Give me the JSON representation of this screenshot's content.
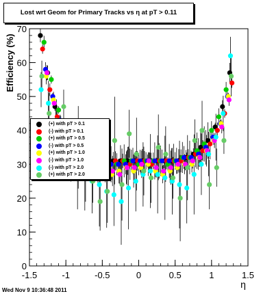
{
  "title": "Lost wrt Geom for Primary Tracks vs   η at pT > 0.11",
  "footer_timestamp": "Wed Nov  9 10:36:48 2011",
  "chart_data": {
    "type": "scatter",
    "title": "Lost wrt Geom for Primary Tracks vs   η at pT > 0.11",
    "xlabel": "η",
    "ylabel": "Efficiency (%)",
    "xlim": [
      -1.5,
      1.5
    ],
    "ylim": [
      0,
      70
    ],
    "xticks": [
      "-1.5",
      "-1",
      "-0.5",
      "0",
      "0.5",
      "1",
      "1.5"
    ],
    "yticks": [
      "0",
      "10",
      "20",
      "30",
      "40",
      "50",
      "60",
      "70"
    ],
    "legend_position": "middle-left",
    "series": [
      {
        "name": "(+) with pT > 0.1",
        "color": "#000000",
        "x": [
          -1.35,
          -1.25,
          -1.15,
          -1.05,
          -0.95,
          -0.85,
          -0.75,
          -0.65,
          -0.55,
          -0.45,
          -0.35,
          -0.25,
          -0.15,
          -0.05,
          0.05,
          0.15,
          0.25,
          0.35,
          0.45,
          0.55,
          0.65,
          0.75,
          0.85,
          0.95,
          1.05,
          1.15,
          1.25
        ],
        "y": [
          68,
          57,
          47,
          41,
          37,
          35,
          33,
          32,
          31,
          31,
          31,
          31,
          31,
          31,
          31,
          31,
          31,
          31,
          31,
          31,
          32,
          33,
          35,
          37,
          41,
          47,
          57
        ]
      },
      {
        "name": "(-) with pT > 0.1",
        "color": "#ff0000",
        "x": [
          -1.32,
          -1.22,
          -1.12,
          -1.02,
          -0.92,
          -0.82,
          -0.72,
          -0.62,
          -0.52,
          -0.42,
          -0.32,
          -0.22,
          -0.12,
          -0.02,
          0.08,
          0.18,
          0.28,
          0.38,
          0.48,
          0.58,
          0.68,
          0.78,
          0.88,
          0.98,
          1.08,
          1.18,
          1.28
        ],
        "y": [
          64,
          52,
          44,
          40,
          36,
          34,
          32,
          31,
          31,
          30,
          31,
          31,
          30,
          31,
          31,
          30,
          31,
          31,
          31,
          31,
          32,
          33,
          34,
          36,
          40,
          45,
          54
        ]
      },
      {
        "name": "(+) with pT > 0.5",
        "color": "#00cc00",
        "x": [
          -1.3,
          -1.2,
          -1.1,
          -1.0,
          -0.9,
          -0.8,
          -0.7,
          -0.6,
          -0.5,
          -0.4,
          -0.3,
          -0.2,
          -0.1,
          0.0,
          0.1,
          0.2,
          0.3,
          0.4,
          0.5,
          0.6,
          0.7,
          0.8,
          0.9,
          1.0,
          1.1,
          1.2
        ],
        "y": [
          66,
          55,
          46,
          40,
          36,
          34,
          32,
          31,
          31,
          30,
          30,
          31,
          31,
          30,
          31,
          31,
          31,
          30,
          31,
          32,
          32,
          34,
          36,
          40,
          44,
          52
        ]
      },
      {
        "name": "(-) with pT > 0.5",
        "color": "#0000ff",
        "x": [
          -1.28,
          -1.18,
          -1.08,
          -0.98,
          -0.88,
          -0.78,
          -0.68,
          -0.58,
          -0.48,
          -0.38,
          -0.28,
          -0.18,
          -0.08,
          0.02,
          0.12,
          0.22,
          0.32,
          0.42,
          0.52,
          0.62,
          0.72,
          0.82,
          0.92,
          1.02,
          1.12,
          1.22
        ],
        "y": [
          58,
          50,
          43,
          38,
          35,
          33,
          32,
          31,
          30,
          30,
          30,
          30,
          31,
          31,
          31,
          31,
          31,
          31,
          31,
          32,
          32,
          33,
          35,
          38,
          42,
          50
        ]
      },
      {
        "name": "(+) with pT > 1.0",
        "color": "#ffff00",
        "x": [
          -1.27,
          -1.17,
          -1.07,
          -0.97,
          -0.87,
          -0.77,
          -0.67,
          -0.57,
          -0.47,
          -0.37,
          -0.27,
          -0.17,
          -0.07,
          0.03,
          0.13,
          0.23,
          0.33,
          0.43,
          0.53,
          0.63,
          0.73,
          0.83,
          0.93,
          1.03,
          1.13,
          1.23
        ],
        "y": [
          56,
          49,
          42,
          37,
          34,
          32,
          30,
          29,
          28,
          27,
          28,
          29,
          28,
          29,
          30,
          28,
          27,
          28,
          29,
          30,
          30,
          32,
          34,
          37,
          42,
          50
        ]
      },
      {
        "name": "(-) with pT > 1.0",
        "color": "#ff00ff",
        "x": [
          -1.26,
          -1.16,
          -1.06,
          -0.96,
          -0.86,
          -0.76,
          -0.66,
          -0.56,
          -0.46,
          -0.36,
          -0.26,
          -0.16,
          -0.06,
          0.04,
          0.14,
          0.24,
          0.34,
          0.44,
          0.54,
          0.64,
          0.74,
          0.84,
          0.94,
          1.04,
          1.14,
          1.24
        ],
        "y": [
          57,
          48,
          41,
          37,
          34,
          31,
          30,
          29,
          28,
          28,
          27,
          29,
          29,
          30,
          31,
          29,
          28,
          29,
          30,
          30,
          31,
          32,
          34,
          37,
          41,
          49
        ]
      },
      {
        "name": "(-) with pT > 2.0",
        "color": "#00ffff",
        "x": [
          -1.34,
          -1.24,
          -1.14,
          -1.04,
          -0.94,
          -0.84,
          -0.74,
          -0.64,
          -0.54,
          -0.44,
          -0.34,
          -0.24,
          -0.14,
          -0.04,
          0.06,
          0.16,
          0.26,
          0.36,
          0.46,
          0.56,
          0.66,
          0.76,
          0.86,
          0.96,
          1.06,
          1.16,
          1.26
        ],
        "y": [
          52,
          48,
          42,
          36,
          33,
          29,
          27,
          25,
          24,
          22,
          21,
          19,
          23,
          25,
          27,
          28,
          27,
          26,
          25,
          24,
          23,
          27,
          30,
          33,
          38,
          45,
          62
        ]
      },
      {
        "name": "(+) with pT > 2.0",
        "color": "#66cc66",
        "x": [
          -1.33,
          -1.23,
          -1.13,
          -1.03,
          -0.93,
          -0.83,
          -0.73,
          -0.63,
          -0.53,
          -0.43,
          -0.33,
          -0.23,
          -0.13,
          -0.03,
          0.07,
          0.17,
          0.27,
          0.37,
          0.47,
          0.57,
          0.67,
          0.77,
          0.87,
          0.97,
          1.07,
          1.17,
          1.27
        ],
        "y": [
          56,
          45,
          43,
          47,
          34,
          35,
          30,
          25,
          19,
          22,
          37,
          24,
          39,
          33,
          28,
          26,
          35,
          33,
          26,
          20,
          29,
          37,
          40,
          24,
          29,
          37,
          56
        ]
      }
    ]
  }
}
